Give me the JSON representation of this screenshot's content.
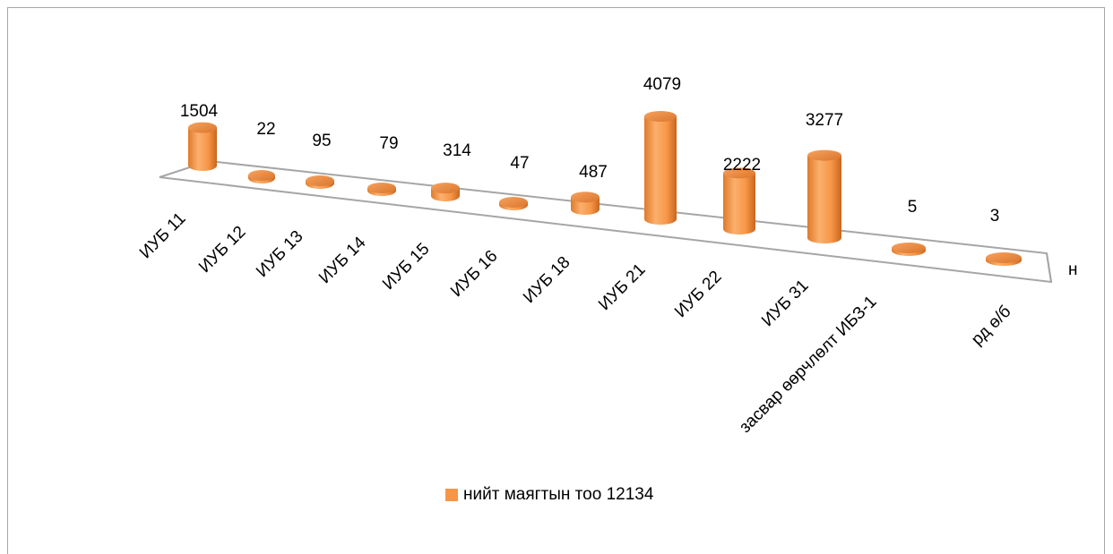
{
  "chart_data": {
    "type": "bar",
    "style": "3d-cylinder",
    "categories": [
      "ИУБ 11",
      "ИУБ 12",
      "ИУБ 13",
      "ИУБ 14",
      "ИУБ 15",
      "ИУБ 16",
      "ИУБ 18",
      "ИУБ 21",
      "ИУБ 22",
      "ИУБ 31",
      "засвар өөрчлөлт ИБЗ-1",
      "рд ө/б"
    ],
    "series": [
      {
        "name": "нийт маягтын тоо 12134",
        "values": [
          1504,
          22,
          95,
          79,
          314,
          47,
          487,
          4079,
          2222,
          3277,
          5,
          3
        ],
        "color": "#f79646"
      }
    ],
    "axis_label_right": "н",
    "legend_position": "bottom",
    "grid": false
  }
}
